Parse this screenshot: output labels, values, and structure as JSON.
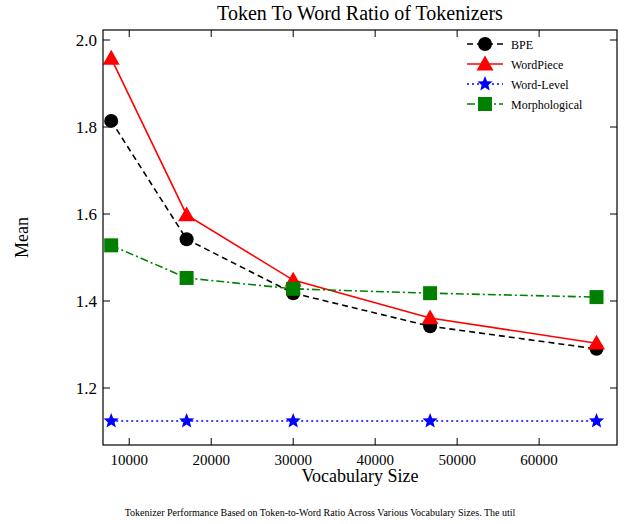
{
  "chart_data": {
    "type": "line",
    "title": "Token To Word Ratio of Tokenizers",
    "x_label": "Vocabulary Size",
    "y_label": "Mean",
    "caption": "Tokenizer Performance Based on Token-to-Word Ratio Across Various Vocabulary Sizes. The util",
    "x": [
      7800,
      17000,
      30000,
      46700,
      67000
    ],
    "series": [
      {
        "name": "BPE",
        "color": "#000000",
        "marker": "circle",
        "line_style": "dashed",
        "values": [
          1.814,
          1.542,
          1.418,
          1.342,
          1.29
        ]
      },
      {
        "name": "WordPiece",
        "color": "#ff0000",
        "marker": "triangle",
        "line_style": "solid",
        "values": [
          1.958,
          1.598,
          1.448,
          1.361,
          1.303
        ]
      },
      {
        "name": "Word-Level",
        "color": "#0000ff",
        "marker": "star",
        "line_style": "dotted",
        "values": [
          1.124,
          1.124,
          1.124,
          1.124,
          1.124
        ]
      },
      {
        "name": "Morphological",
        "color": "#008000",
        "marker": "square",
        "line_style": "dashdot",
        "values": [
          1.528,
          1.453,
          1.428,
          1.418,
          1.409
        ]
      }
    ],
    "xlim": [
      6800,
      69500
    ],
    "ylim": [
      1.069,
      2.023
    ],
    "xticks": [
      10000,
      20000,
      30000,
      40000,
      50000,
      60000
    ],
    "yticks": [
      1.2,
      1.4,
      1.6,
      1.8,
      {
        "value": 2,
        "label": "2.0"
      }
    ],
    "grid": false,
    "legend": "upper right"
  }
}
